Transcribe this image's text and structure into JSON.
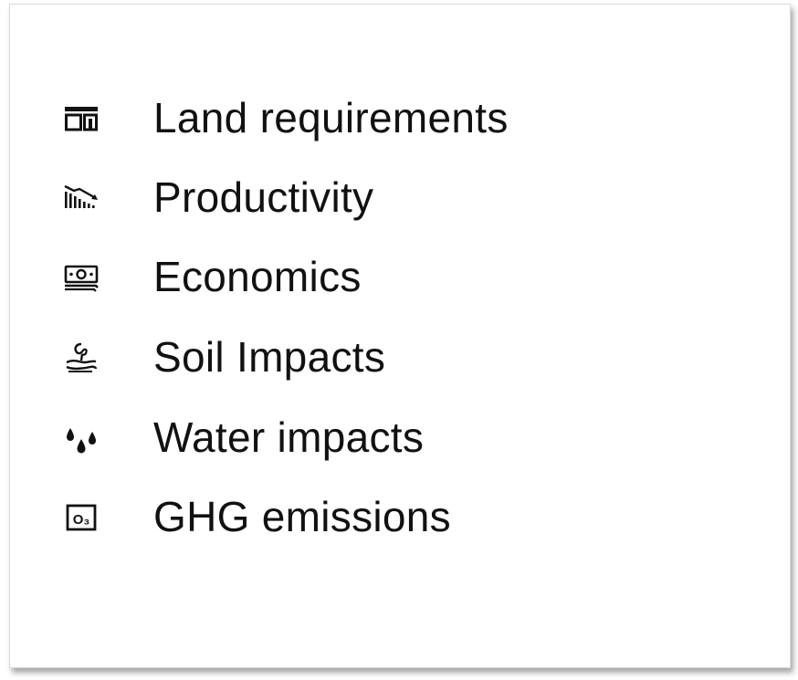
{
  "items": [
    {
      "label": "Land requirements",
      "icon": "land-layout-icon"
    },
    {
      "label": "Productivity",
      "icon": "declining-bar-chart-icon"
    },
    {
      "label": "Economics",
      "icon": "money-bill-icon"
    },
    {
      "label": "Soil Impacts",
      "icon": "seedling-hand-icon"
    },
    {
      "label": "Water impacts",
      "icon": "water-drops-icon"
    },
    {
      "label": "GHG emissions",
      "icon": "ozone-o3-icon"
    }
  ],
  "icon_badges": {
    "ozone": "O₃"
  }
}
